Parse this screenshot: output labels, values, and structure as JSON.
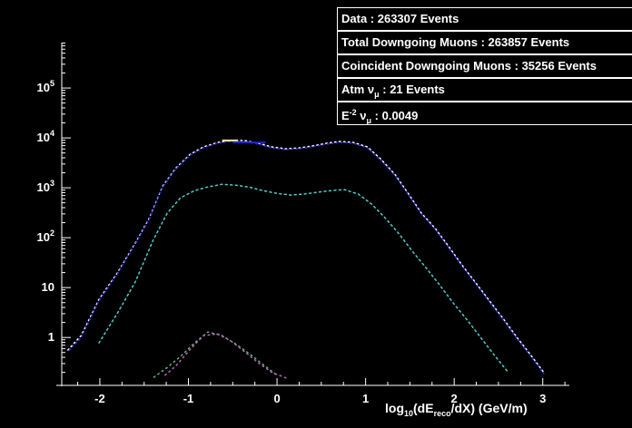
{
  "page": {
    "background": "#000000",
    "foreground": "#ffffff"
  },
  "legend": {
    "rows": [
      {
        "name": "data-events",
        "segments": [
          {
            "t": "Data : 263307 Events"
          }
        ]
      },
      {
        "name": "total-downgoing",
        "segments": [
          {
            "t": "Total Downgoing Muons : 263857 Events"
          }
        ]
      },
      {
        "name": "coincident-downgoing",
        "segments": [
          {
            "t": "Coincident Downgoing Muons : 35256 Events"
          }
        ]
      },
      {
        "name": "atm-numu",
        "segments": [
          {
            "t": "Atm "
          },
          {
            "t": "ν"
          },
          {
            "t": "μ",
            "sub": true
          },
          {
            "t": " : 21 Events"
          }
        ]
      },
      {
        "name": "e-minus-2-numu",
        "segments": [
          {
            "t": "E"
          },
          {
            "t": "-2",
            "sup": true
          },
          {
            "t": " ν"
          },
          {
            "t": "μ",
            "sub": true
          },
          {
            "t": " : 0.0049"
          }
        ]
      }
    ]
  },
  "chart_data": {
    "type": "line",
    "title": "",
    "grid": false,
    "legend_position": "top-right",
    "x_axis": {
      "label_segments": [
        {
          "t": "log"
        },
        {
          "t": "10",
          "sub": true
        },
        {
          "t": "(dE"
        },
        {
          "t": "reco",
          "sub": true
        },
        {
          "t": "/dX) (GeV/m)"
        }
      ],
      "range": [
        -2.43,
        3.3
      ],
      "major_ticks": [
        -2,
        -1,
        0,
        1,
        2,
        3
      ],
      "minor_step": 0.25
    },
    "y_axis": {
      "scale": "log",
      "log_range": [
        -0.96,
        5.91
      ],
      "major_ticks": [
        {
          "label": "1",
          "exp": "",
          "value": 1
        },
        {
          "label": "10",
          "exp": "",
          "value": 10
        },
        {
          "label": "10",
          "exp": "2",
          "value": 100
        },
        {
          "label": "10",
          "exp": "3",
          "value": 1000
        },
        {
          "label": "10",
          "exp": "4",
          "value": 10000
        },
        {
          "label": "10",
          "exp": "5",
          "value": 100000
        }
      ]
    },
    "series": [
      {
        "name": "Data",
        "color": "#ffffff",
        "width": 1.5,
        "dash": "1.5 3.5",
        "offset": 0,
        "points": [
          [
            -2.36,
            0.56
          ],
          [
            -2.21,
            1.1
          ],
          [
            -2.01,
            5.8
          ],
          [
            -1.8,
            20
          ],
          [
            -1.6,
            78
          ],
          [
            -1.44,
            250
          ],
          [
            -1.29,
            1090
          ],
          [
            -1.14,
            2500
          ],
          [
            -0.98,
            4700
          ],
          [
            -0.83,
            6600
          ],
          [
            -0.67,
            8100
          ],
          [
            -0.52,
            8900
          ],
          [
            -0.37,
            8900
          ],
          [
            -0.21,
            7800
          ],
          [
            -0.06,
            6600
          ],
          [
            0.1,
            6050
          ],
          [
            0.25,
            6300
          ],
          [
            0.4,
            6900
          ],
          [
            0.56,
            7800
          ],
          [
            0.71,
            8500
          ],
          [
            0.86,
            8100
          ],
          [
            1.02,
            6600
          ],
          [
            1.17,
            3800
          ],
          [
            1.33,
            1870
          ],
          [
            1.48,
            780
          ],
          [
            1.63,
            310
          ],
          [
            1.79,
            150
          ],
          [
            1.94,
            66
          ],
          [
            2.09,
            28
          ],
          [
            2.25,
            12
          ],
          [
            2.4,
            5.4
          ],
          [
            2.56,
            2.3
          ],
          [
            2.71,
            1.0
          ],
          [
            2.87,
            0.43
          ],
          [
            3.02,
            0.19
          ]
        ]
      },
      {
        "name": "Total Downgoing Muons",
        "color": "#2a2ae0",
        "width": 1.5,
        "dash": "1.5 3.5",
        "offset": 2.5,
        "points": [
          [
            -2.36,
            0.52
          ],
          [
            -2.21,
            1.0
          ],
          [
            -2.01,
            5.4
          ],
          [
            -1.8,
            19
          ],
          [
            -1.6,
            74
          ],
          [
            -1.44,
            240
          ],
          [
            -1.29,
            1040
          ],
          [
            -1.14,
            2400
          ],
          [
            -0.98,
            4500
          ],
          [
            -0.83,
            6300
          ],
          [
            -0.67,
            7800
          ],
          [
            -0.52,
            8500
          ],
          [
            -0.37,
            8500
          ],
          [
            -0.21,
            7500
          ],
          [
            -0.06,
            6300
          ],
          [
            0.1,
            5800
          ],
          [
            0.25,
            6050
          ],
          [
            0.4,
            6600
          ],
          [
            0.56,
            7500
          ],
          [
            0.71,
            8100
          ],
          [
            0.86,
            7800
          ],
          [
            1.02,
            6300
          ],
          [
            1.17,
            3600
          ],
          [
            1.33,
            1800
          ],
          [
            1.48,
            750
          ],
          [
            1.63,
            300
          ],
          [
            1.79,
            145
          ],
          [
            1.94,
            63
          ],
          [
            2.09,
            27
          ],
          [
            2.25,
            11.5
          ],
          [
            2.4,
            5.1
          ],
          [
            2.56,
            2.2
          ],
          [
            2.71,
            0.95
          ],
          [
            2.87,
            0.41
          ],
          [
            3.02,
            0.18
          ]
        ]
      },
      {
        "name": "Coincident Downgoing Muons",
        "color": "#4ecccc",
        "width": 1.5,
        "dash": "2 3.5",
        "offset": 0,
        "points": [
          [
            -2.01,
            0.78
          ],
          [
            -1.8,
            3.1
          ],
          [
            -1.6,
            13
          ],
          [
            -1.4,
            88
          ],
          [
            -1.24,
            310
          ],
          [
            -1.09,
            630
          ],
          [
            -0.93,
            880
          ],
          [
            -0.78,
            1040
          ],
          [
            -0.62,
            1180
          ],
          [
            -0.47,
            1130
          ],
          [
            -0.32,
            1040
          ],
          [
            -0.16,
            880
          ],
          [
            -0.01,
            780
          ],
          [
            0.15,
            715
          ],
          [
            0.3,
            745
          ],
          [
            0.45,
            810
          ],
          [
            0.61,
            880
          ],
          [
            0.76,
            920
          ],
          [
            0.92,
            745
          ],
          [
            1.07,
            470
          ],
          [
            1.22,
            250
          ],
          [
            1.38,
            118
          ],
          [
            1.53,
            53
          ],
          [
            1.69,
            24
          ],
          [
            1.84,
            11
          ],
          [
            1.99,
            4.9
          ],
          [
            2.15,
            2.2
          ],
          [
            2.3,
            1.0
          ],
          [
            2.45,
            0.45
          ],
          [
            2.61,
            0.2
          ]
        ]
      },
      {
        "name": "Atm numu",
        "color": "#55b878",
        "width": 1.5,
        "dash": "1.5 4",
        "offset": 0,
        "points": [
          [
            -1.39,
            0.16
          ],
          [
            -1.24,
            0.25
          ],
          [
            -1.08,
            0.43
          ],
          [
            -0.93,
            0.78
          ],
          [
            -0.78,
            1.29
          ],
          [
            -0.62,
            1.09
          ],
          [
            -0.47,
            0.75
          ],
          [
            -0.31,
            0.47
          ],
          [
            -0.16,
            0.29
          ],
          [
            -0.01,
            0.18
          ]
        ]
      },
      {
        "name": "E^-2 numu",
        "color": "#c060c0",
        "width": 1.5,
        "dash": "1.5 4",
        "offset": 2,
        "points": [
          [
            -1.29,
            0.16
          ],
          [
            -1.14,
            0.27
          ],
          [
            -0.98,
            0.58
          ],
          [
            -0.83,
            1.09
          ],
          [
            -0.67,
            1.18
          ],
          [
            -0.52,
            0.85
          ],
          [
            -0.36,
            0.51
          ],
          [
            -0.21,
            0.31
          ],
          [
            -0.06,
            0.2
          ],
          [
            0.1,
            0.155
          ]
        ]
      }
    ],
    "accent_segments": [
      {
        "name": "peak-segment-yellow",
        "color": "#eeee88",
        "width": 2,
        "points": [
          [
            -0.62,
            8900
          ],
          [
            -0.44,
            8900
          ]
        ]
      },
      {
        "name": "peak-segment-blue",
        "color": "#2222dd",
        "width": 2,
        "points": [
          [
            -0.5,
            8100
          ],
          [
            -0.13,
            8100
          ]
        ]
      }
    ]
  }
}
